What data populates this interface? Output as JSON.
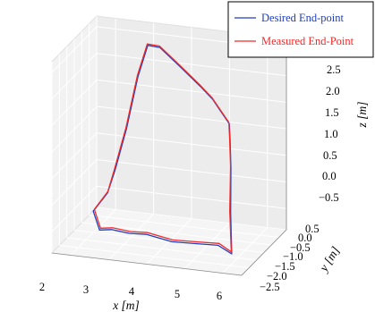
{
  "chart_data": {
    "type": "line",
    "projection": "3d",
    "title": "",
    "xlabel": "x [m]",
    "ylabel": "y [m]",
    "zlabel": "z [m]",
    "xlim": [
      1.5,
      6.5
    ],
    "ylim": [
      -2.5,
      0.5
    ],
    "zlim": [
      -0.9,
      2.7
    ],
    "x_ticks": [
      "2",
      "3",
      "4",
      "5",
      "6"
    ],
    "y_ticks": [
      "0.5",
      "0.0",
      "−0.5",
      "−1.0",
      "−1.5",
      "−2.0",
      "−2.5"
    ],
    "z_ticks": [
      "2.5",
      "2.0",
      "1.5",
      "1.0",
      "0.5",
      "0.0",
      "−0.5"
    ],
    "grid": true,
    "legend_position": "top-right",
    "series": [
      {
        "name": "Desired End-point",
        "color": "#1f3fbf",
        "points": [
          [
            2.1,
            -0.3,
            -0.35
          ],
          [
            2.0,
            -1.0,
            -0.5
          ],
          [
            2.4,
            -1.6,
            -0.65
          ],
          [
            2.8,
            -1.8,
            -0.55
          ],
          [
            3.3,
            -1.9,
            -0.55
          ],
          [
            3.8,
            -2.0,
            -0.5
          ],
          [
            4.5,
            -2.1,
            -0.55
          ],
          [
            5.2,
            -2.2,
            -0.5
          ],
          [
            5.8,
            -2.3,
            -0.45
          ],
          [
            6.2,
            -2.4,
            -0.55
          ],
          [
            6.15,
            -2.35,
            0.2
          ],
          [
            6.1,
            -2.2,
            1.0
          ],
          [
            6.0,
            -2.0,
            1.45
          ],
          [
            5.9,
            -1.8,
            1.7
          ],
          [
            5.6,
            -1.6,
            1.85
          ],
          [
            5.3,
            -1.4,
            2.0
          ],
          [
            4.9,
            -1.2,
            2.15
          ],
          [
            4.3,
            -0.9,
            2.35
          ],
          [
            3.6,
            -0.6,
            2.6
          ],
          [
            3.2,
            -0.4,
            2.55
          ],
          [
            2.9,
            -0.3,
            1.9
          ],
          [
            2.6,
            -0.3,
            0.9
          ],
          [
            2.3,
            -0.3,
            0.1
          ],
          [
            2.1,
            -0.3,
            -0.35
          ]
        ]
      },
      {
        "name": "Measured End-Point",
        "color": "#f22a2a",
        "points": [
          [
            2.1,
            -0.28,
            -0.33
          ],
          [
            2.02,
            -0.98,
            -0.47
          ],
          [
            2.42,
            -1.58,
            -0.62
          ],
          [
            2.82,
            -1.78,
            -0.52
          ],
          [
            3.32,
            -1.88,
            -0.52
          ],
          [
            3.82,
            -1.98,
            -0.47
          ],
          [
            4.52,
            -2.08,
            -0.52
          ],
          [
            5.22,
            -2.18,
            -0.47
          ],
          [
            5.82,
            -2.28,
            -0.42
          ],
          [
            6.18,
            -2.38,
            -0.52
          ],
          [
            6.12,
            -2.33,
            0.22
          ],
          [
            6.08,
            -2.18,
            1.02
          ],
          [
            5.98,
            -1.98,
            1.47
          ],
          [
            5.88,
            -1.78,
            1.72
          ],
          [
            5.58,
            -1.58,
            1.87
          ],
          [
            5.28,
            -1.38,
            2.02
          ],
          [
            4.88,
            -1.18,
            2.17
          ],
          [
            4.28,
            -0.88,
            2.37
          ],
          [
            3.58,
            -0.58,
            2.62
          ],
          [
            3.18,
            -0.38,
            2.57
          ],
          [
            2.88,
            -0.28,
            1.92
          ],
          [
            2.58,
            -0.28,
            0.92
          ],
          [
            2.28,
            -0.28,
            0.12
          ],
          [
            2.1,
            -0.28,
            -0.33
          ]
        ]
      }
    ]
  }
}
